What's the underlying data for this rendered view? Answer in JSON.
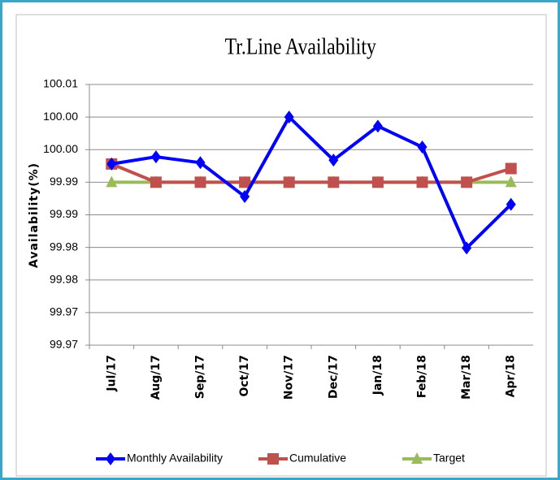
{
  "chart_data": {
    "type": "line",
    "title": "Tr.Line Availability",
    "y_label": "Availability(%)",
    "categories": [
      "Jul/17",
      "Aug/17",
      "Sep/17",
      "Oct/17",
      "Nov/17",
      "Dec/17",
      "Jan/18",
      "Feb/18",
      "Mar/18",
      "Apr/18"
    ],
    "series": [
      {
        "name": "Monthly Availability",
        "color": "#0000ff",
        "marker": "diamond",
        "values": [
          99.9928,
          99.9939,
          99.993,
          99.9878,
          100.0,
          99.9934,
          99.9986,
          99.9954,
          99.9799,
          99.9866
        ]
      },
      {
        "name": "Cumulative",
        "color": "#c0504d",
        "marker": "square",
        "values": [
          99.9928,
          99.99,
          99.99,
          99.99,
          99.99,
          99.99,
          99.99,
          99.99,
          99.99,
          99.9921
        ]
      },
      {
        "name": "Target",
        "color": "#9bbb59",
        "marker": "triangle",
        "values": [
          99.99,
          99.99,
          99.99,
          99.99,
          99.99,
          99.99,
          99.99,
          99.99,
          99.99,
          99.99
        ]
      }
    ],
    "ylim": [
      99.965,
      100.005
    ],
    "yticks": [
      {
        "value": 99.965,
        "label": "99.97"
      },
      {
        "value": 99.97,
        "label": "99.97"
      },
      {
        "value": 99.975,
        "label": "99.98"
      },
      {
        "value": 99.98,
        "label": "99.98"
      },
      {
        "value": 99.985,
        "label": "99.99"
      },
      {
        "value": 99.99,
        "label": "99.99"
      },
      {
        "value": 99.995,
        "label": "100.00"
      },
      {
        "value": 100.0,
        "label": "100.00"
      },
      {
        "value": 100.005,
        "label": "100.01"
      }
    ],
    "grid": true,
    "legend": "bottom"
  }
}
